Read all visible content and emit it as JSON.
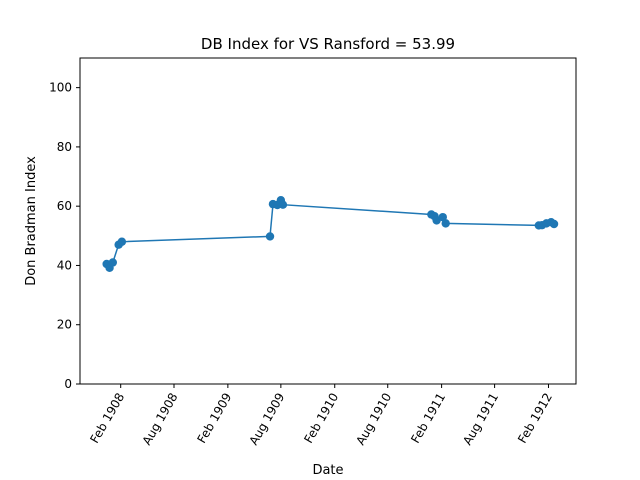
{
  "chart_data": {
    "type": "line",
    "title": "DB Index for VS Ransford = 53.99",
    "xlabel": "Date",
    "ylabel": "Don Bradman Index",
    "ylim": [
      0,
      110
    ],
    "xlim": [
      "1907-09-15",
      "1912-05-05"
    ],
    "yticks": [
      0,
      20,
      40,
      60,
      80,
      100
    ],
    "xticks": [
      {
        "date": "1908-02-01",
        "label": "Feb 1908"
      },
      {
        "date": "1908-08-01",
        "label": "Aug 1908"
      },
      {
        "date": "1909-02-01",
        "label": "Feb 1909"
      },
      {
        "date": "1909-08-01",
        "label": "Aug 1909"
      },
      {
        "date": "1910-02-01",
        "label": "Feb 1910"
      },
      {
        "date": "1910-08-01",
        "label": "Aug 1910"
      },
      {
        "date": "1911-02-01",
        "label": "Feb 1911"
      },
      {
        "date": "1911-08-01",
        "label": "Aug 1911"
      },
      {
        "date": "1912-02-01",
        "label": "Feb 1912"
      }
    ],
    "grid": false,
    "color": "#1f77b4",
    "series": [
      {
        "points": [
          {
            "x": "1907-12-15",
            "y": 40.5
          },
          {
            "x": "1907-12-25",
            "y": 39.2
          },
          {
            "x": "1908-01-05",
            "y": 41.0
          },
          {
            "x": "1908-01-25",
            "y": 47.0
          },
          {
            "x": "1908-02-05",
            "y": 48.0
          },
          {
            "x": "1909-06-25",
            "y": 49.8
          },
          {
            "x": "1909-07-05",
            "y": 60.7
          },
          {
            "x": "1909-07-20",
            "y": 60.4
          },
          {
            "x": "1909-08-01",
            "y": 62.0
          },
          {
            "x": "1909-08-08",
            "y": 60.5
          },
          {
            "x": "1910-12-28",
            "y": 57.2
          },
          {
            "x": "1911-01-08",
            "y": 56.6
          },
          {
            "x": "1911-01-15",
            "y": 55.2
          },
          {
            "x": "1911-02-05",
            "y": 56.3
          },
          {
            "x": "1911-02-15",
            "y": 54.2
          },
          {
            "x": "1911-12-30",
            "y": 53.5
          },
          {
            "x": "1912-01-10",
            "y": 53.6
          },
          {
            "x": "1912-01-25",
            "y": 54.2
          },
          {
            "x": "1912-02-10",
            "y": 54.6
          },
          {
            "x": "1912-02-20",
            "y": 53.99
          }
        ]
      }
    ]
  }
}
